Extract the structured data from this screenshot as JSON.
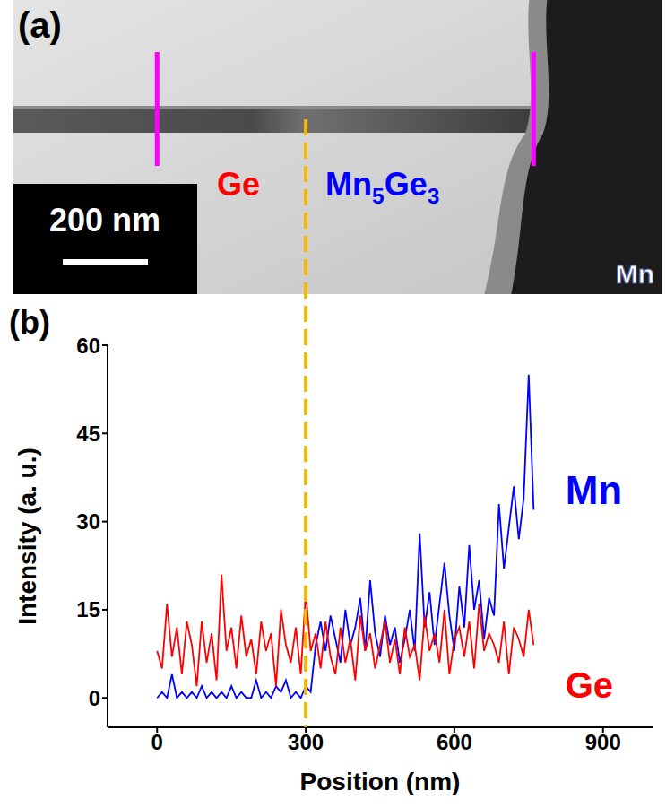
{
  "image_panel": {
    "panel_label": "(a)",
    "labels": [
      {
        "text": "Ge",
        "color": "#ff0000"
      },
      {
        "text": "Mn5Ge3",
        "color": "#0000ff"
      },
      {
        "text": "Mn",
        "color": "#ffffff"
      }
    ],
    "scale_bar": "200 nm"
  },
  "chart_data": {
    "panel_label": "(b)",
    "type": "line",
    "x_label": "Position (nm)",
    "y_label": "Intensity (a. u.)",
    "x": [
      0,
      10,
      20,
      30,
      40,
      50,
      60,
      70,
      80,
      90,
      100,
      110,
      120,
      130,
      140,
      150,
      160,
      170,
      180,
      190,
      200,
      210,
      220,
      230,
      240,
      250,
      260,
      270,
      280,
      290,
      300,
      310,
      320,
      330,
      340,
      350,
      360,
      370,
      380,
      390,
      400,
      410,
      420,
      430,
      440,
      450,
      460,
      470,
      480,
      490,
      500,
      510,
      520,
      530,
      540,
      550,
      560,
      570,
      580,
      590,
      600,
      610,
      620,
      630,
      640,
      650,
      660,
      670,
      680,
      690,
      700,
      710,
      720,
      730,
      740,
      750,
      760
    ],
    "xlim": [
      -100,
      1000
    ],
    "xticks": [
      0,
      300,
      600,
      900
    ],
    "ylim": [
      -5,
      60
    ],
    "yticks": [
      0,
      15,
      30,
      45,
      60
    ],
    "grid": false,
    "legend": "right",
    "interface_position": 300,
    "series": [
      {
        "name": "Mn",
        "color": "#0000ff",
        "values": [
          0,
          1,
          0,
          4,
          0,
          1,
          0,
          1,
          0,
          2,
          0,
          1,
          0,
          1,
          0,
          2,
          0,
          1,
          0,
          0,
          3,
          0,
          1,
          0,
          2,
          1,
          3,
          0,
          1,
          0,
          2,
          1,
          9,
          13,
          8,
          14,
          10,
          6,
          15,
          9,
          12,
          17,
          8,
          20,
          11,
          7,
          14,
          9,
          12,
          6,
          10,
          15,
          8,
          28,
          12,
          18,
          9,
          16,
          23,
          14,
          8,
          19,
          12,
          26,
          15,
          20,
          10,
          17,
          14,
          33,
          22,
          29,
          36,
          27,
          34,
          55,
          32
        ]
      },
      {
        "name": "Ge",
        "color": "#ff0000",
        "values": [
          8,
          5,
          16,
          7,
          12,
          4,
          13,
          9,
          2,
          13,
          6,
          11,
          3,
          21,
          8,
          12,
          5,
          14,
          7,
          10,
          4,
          13,
          8,
          11,
          2,
          15,
          9,
          6,
          12,
          4,
          18,
          8,
          11,
          5,
          13,
          7,
          4,
          12,
          6,
          10,
          3,
          14,
          8,
          11,
          5,
          9,
          13,
          6,
          10,
          4,
          12,
          7,
          9,
          3,
          14,
          8,
          11,
          6,
          15,
          4,
          10,
          12,
          7,
          13,
          5,
          16,
          8,
          11,
          9,
          6,
          13,
          4,
          12,
          10,
          7,
          15,
          9
        ]
      }
    ]
  }
}
